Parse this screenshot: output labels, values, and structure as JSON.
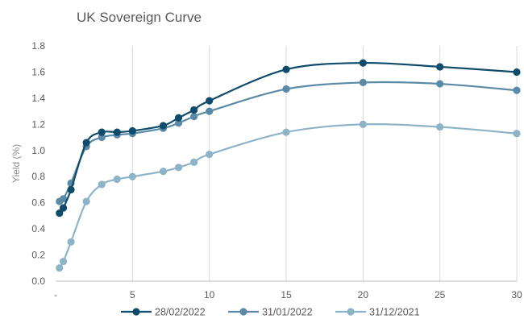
{
  "chart_data": {
    "type": "line",
    "title": "UK Sovereign Curve",
    "xlabel": "",
    "ylabel": "Yield (%)",
    "xlim": [
      0,
      30
    ],
    "ylim": [
      0.0,
      1.8
    ],
    "x_ticks": [
      0,
      5,
      10,
      15,
      20,
      25,
      30
    ],
    "x_tick_labels": [
      "-",
      "5",
      "10",
      "15",
      "20",
      "25",
      "30"
    ],
    "y_ticks": [
      0.0,
      0.2,
      0.4,
      0.6,
      0.8,
      1.0,
      1.2,
      1.4,
      1.6,
      1.8
    ],
    "y_tick_labels": [
      "0.0",
      "0.2",
      "0.4",
      "0.6",
      "0.8",
      "1.0",
      "1.2",
      "1.4",
      "1.6",
      "1.8"
    ],
    "grid": "vertical",
    "legend_position": "bottom",
    "x": [
      0.25,
      0.5,
      1,
      2,
      3,
      4,
      5,
      7,
      8,
      9,
      10,
      15,
      20,
      25,
      30
    ],
    "series": [
      {
        "name": "28/02/2022",
        "color": "#0f4c6b",
        "values": [
          0.52,
          0.56,
          0.7,
          1.06,
          1.14,
          1.14,
          1.15,
          1.19,
          1.25,
          1.31,
          1.38,
          1.62,
          1.67,
          1.64,
          1.6
        ]
      },
      {
        "name": "31/01/2022",
        "color": "#5a8aa6",
        "values": [
          0.61,
          0.63,
          0.75,
          1.03,
          1.1,
          1.12,
          1.13,
          1.17,
          1.21,
          1.26,
          1.3,
          1.47,
          1.52,
          1.51,
          1.46
        ]
      },
      {
        "name": "31/12/2021",
        "color": "#8db3c7",
        "values": [
          0.1,
          0.15,
          0.3,
          0.61,
          0.74,
          0.78,
          0.8,
          0.84,
          0.87,
          0.91,
          0.97,
          1.14,
          1.2,
          1.18,
          1.13
        ]
      }
    ]
  }
}
